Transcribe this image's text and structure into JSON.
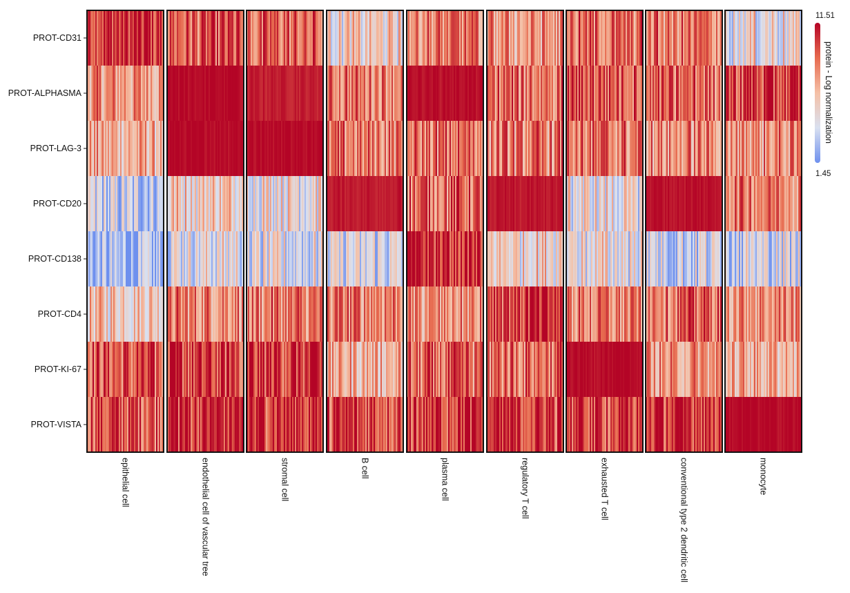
{
  "chart_data": {
    "type": "heatmap",
    "title": "",
    "xlabel": "",
    "ylabel": "",
    "rows": [
      "PROT-CD31",
      "PROT-ALPHASMA",
      "PROT-LAG-3",
      "PROT-CD20",
      "PROT-CD138",
      "PROT-CD4",
      "PROT-KI-67",
      "PROT-VISTA"
    ],
    "groups": [
      "epithelial cell",
      "endothelial cell of vascular tree",
      "stromal cell",
      "B cell",
      "plasma cell",
      "regulatory T cell",
      "exhausted T cell",
      "conventional type 2 dendritic cell",
      "monocyte"
    ],
    "mean_values": [
      [
        10.3,
        9.2,
        8.9,
        5.6,
        8.3,
        7.5,
        8.7,
        8.3,
        5.0
      ],
      [
        7.7,
        11.4,
        10.9,
        8.7,
        11.3,
        8.7,
        9.7,
        8.9,
        10.0
      ],
      [
        6.8,
        11.4,
        11.4,
        8.4,
        8.5,
        8.3,
        8.6,
        7.9,
        7.8
      ],
      [
        3.4,
        5.9,
        5.4,
        11.0,
        9.0,
        11.0,
        4.9,
        11.2,
        8.7
      ],
      [
        2.4,
        4.6,
        4.2,
        4.2,
        10.6,
        5.7,
        5.0,
        3.9,
        4.0
      ],
      [
        6.1,
        8.2,
        8.5,
        8.6,
        7.6,
        10.3,
        8.3,
        9.1,
        8.1
      ],
      [
        9.3,
        9.9,
        10.2,
        6.9,
        8.7,
        8.9,
        11.4,
        7.5,
        6.9
      ],
      [
        9.6,
        10.5,
        10.5,
        10.0,
        10.2,
        10.1,
        10.1,
        10.5,
        11.4
      ]
    ],
    "colorbar": {
      "title": "protein - Log normalization",
      "min": 1.45,
      "max": 11.51,
      "min_label": "1.45",
      "max_label": "11.51",
      "colors": [
        "#6e90ee",
        "#d9e0f0",
        "#f5c0a6",
        "#e76a4f",
        "#b40426"
      ]
    }
  }
}
